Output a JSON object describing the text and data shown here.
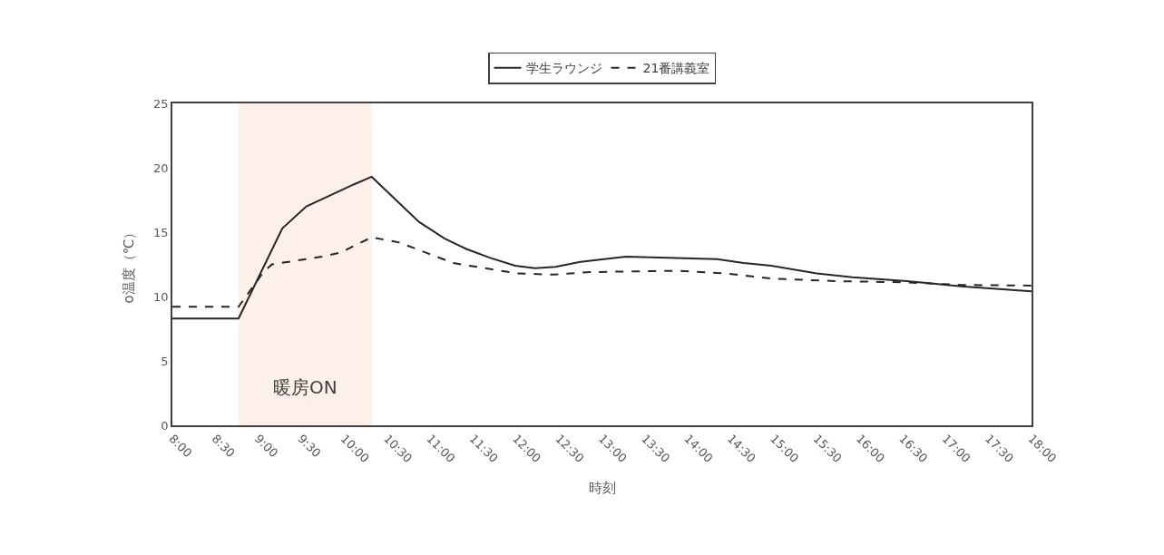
{
  "chart_data": {
    "type": "line",
    "xlabel": "時刻",
    "ylabel": "o温度（℃）",
    "xlim": [
      8,
      18
    ],
    "ylim": [
      0,
      25
    ],
    "xticks": [
      {
        "value": 8,
        "label": "8:00"
      },
      {
        "value": 8.5,
        "label": "8:30"
      },
      {
        "value": 9,
        "label": "9:00"
      },
      {
        "value": 9.5,
        "label": "9:30"
      },
      {
        "value": 10,
        "label": "10:00"
      },
      {
        "value": 10.5,
        "label": "10:30"
      },
      {
        "value": 11,
        "label": "11:00"
      },
      {
        "value": 11.5,
        "label": "11:30"
      },
      {
        "value": 12,
        "label": "12:00"
      },
      {
        "value": 12.5,
        "label": "12:30"
      },
      {
        "value": 13,
        "label": "13:00"
      },
      {
        "value": 13.5,
        "label": "13:30"
      },
      {
        "value": 14,
        "label": "14:00"
      },
      {
        "value": 14.5,
        "label": "14:30"
      },
      {
        "value": 15,
        "label": "15:00"
      },
      {
        "value": 15.5,
        "label": "15:30"
      },
      {
        "value": 16,
        "label": "16:00"
      },
      {
        "value": 16.5,
        "label": "16:30"
      },
      {
        "value": 17,
        "label": "17:00"
      },
      {
        "value": 17.5,
        "label": "17:30"
      },
      {
        "value": 18,
        "label": "18:00"
      }
    ],
    "yticks": [
      0,
      5,
      10,
      15,
      20,
      25
    ],
    "grid": false,
    "legend": "top",
    "marker": "none",
    "bands": [
      {
        "axis": "x",
        "from": 8.77,
        "to": 10.32,
        "label": "暖房ON",
        "color": "#fdf0e8"
      }
    ],
    "series": [
      {
        "name": "学生ラウンジ",
        "color": "#262626",
        "line_style": "solid",
        "x": [
          8,
          8.77,
          9.28,
          9.56,
          9.85,
          10.11,
          10.32,
          10.87,
          11.17,
          11.42,
          11.7,
          11.99,
          12.22,
          12.46,
          12.75,
          13.28,
          13.86,
          14.34,
          14.65,
          14.97,
          15.5,
          15.92,
          16.55,
          17.18,
          18
        ],
        "values": [
          8.3,
          8.3,
          15.3,
          17.0,
          17.9,
          18.7,
          19.3,
          15.8,
          14.5,
          13.7,
          13.0,
          12.4,
          12.2,
          12.3,
          12.7,
          13.1,
          13.0,
          12.9,
          12.6,
          12.4,
          11.8,
          11.5,
          11.2,
          10.8,
          10.4
        ]
      },
      {
        "name": "21番講義室",
        "color": "#262626",
        "line_style": "dashed",
        "x": [
          8,
          8.77,
          9.06,
          9.16,
          9.74,
          9.95,
          10.32,
          10.64,
          11.27,
          12.01,
          12.43,
          12.86,
          13.91,
          14.44,
          14.97,
          15.71,
          16.55,
          17.18,
          18
        ],
        "values": [
          9.2,
          9.2,
          11.9,
          12.5,
          13.1,
          13.4,
          14.6,
          14.2,
          12.6,
          11.8,
          11.7,
          11.9,
          12.0,
          11.8,
          11.4,
          11.2,
          11.1,
          10.9,
          10.85
        ]
      }
    ]
  }
}
